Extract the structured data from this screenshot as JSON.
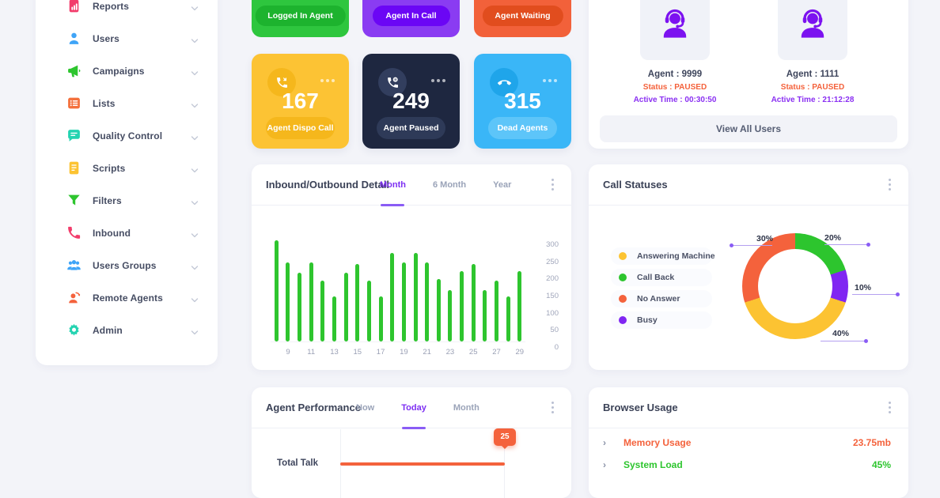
{
  "colors": {
    "green": "#2dc52e",
    "purple": "#8026f2",
    "orange": "#f4623c",
    "yellow": "#fcc332",
    "blue": "#3ab6f7",
    "dark_navy": "#1e2740",
    "pink": "#f23c6b",
    "teal": "#23d3b1",
    "blue_light": "#3fa4f7",
    "accent_purple": "#7d2ff2",
    "text_dark": "#3b4257",
    "text_gray": "#9aa3b8"
  },
  "sidebar": {
    "items": [
      {
        "icon": "reports-icon",
        "label": "Reports",
        "color": "#f23c6b"
      },
      {
        "icon": "users-icon",
        "label": "Users",
        "color": "#3fa4f7"
      },
      {
        "icon": "campaigns-icon",
        "label": "Campaigns",
        "color": "#2dc52e"
      },
      {
        "icon": "lists-icon",
        "label": "Lists",
        "color": "#f4703c"
      },
      {
        "icon": "quality-control-icon",
        "label": "Quality Control",
        "color": "#23d3b1"
      },
      {
        "icon": "scripts-icon",
        "label": "Scripts",
        "color": "#fcc332"
      },
      {
        "icon": "filters-icon",
        "label": "Filters",
        "color": "#2dc52e"
      },
      {
        "icon": "inbound-icon",
        "label": "Inbound",
        "color": "#f23c6b"
      },
      {
        "icon": "users-groups-icon",
        "label": "Users Groups",
        "color": "#3fa4f7"
      },
      {
        "icon": "remote-agents-icon",
        "label": "Remote Agents",
        "color": "#f4623c"
      },
      {
        "icon": "admin-icon",
        "label": "Admin",
        "color": "#23d3b1"
      }
    ]
  },
  "stat_cards_row1": [
    {
      "label": "Logged In Agent",
      "bg": "#2ec63e",
      "pill_bg": "#1db32e"
    },
    {
      "label": "Agent In Call",
      "bg": "#8a3cf2",
      "pill_bg": "#6b06f5"
    },
    {
      "label": "Agent Waiting",
      "bg": "#f2613a",
      "pill_bg": "#e14d1e"
    }
  ],
  "stat_cards_row2": [
    {
      "value": "167",
      "label": "Agent Dispo Call",
      "bg": "#fcc334",
      "badge_bg": "#f5b71c",
      "pill_bg": "#f5b71c",
      "icon": "phone-missed-icon"
    },
    {
      "value": "249",
      "label": "Agent Paused",
      "bg": "#1e2740",
      "badge_bg": "#323e5e",
      "pill_bg": "#2e3a58",
      "icon": "phone-paused-icon"
    },
    {
      "value": "315",
      "label": "Dead Agents",
      "bg": "#3ab6f7",
      "badge_bg": "#1fa5ea",
      "pill_bg": "#5dc5f9",
      "icon": "phone-dead-icon"
    }
  ],
  "agents_panel": {
    "agents": [
      {
        "name": "Agent : 9999",
        "status": "Status : PAUSED",
        "active": "Active Time : 00:30:50"
      },
      {
        "name": "Agent : 1111",
        "status": "Status : PAUSED",
        "active": "Active Time : 21:12:28"
      }
    ],
    "status_color": "#f4623c",
    "active_color": "#8a2ff2",
    "button_label": "View All Users"
  },
  "panels": {
    "inbound": {
      "title": "Inbound/Outbound Detail",
      "tabs": [
        "Month",
        "6 Month",
        "Year"
      ],
      "active_tab": "Month"
    },
    "call_statuses": {
      "title": "Call Statuses"
    },
    "performance": {
      "title": "Agent Performance",
      "tabs": [
        "Now",
        "Today",
        "Month"
      ],
      "active_tab": "Today"
    },
    "browser": {
      "title": "Browser Usage",
      "rows": [
        {
          "label": "Memory Usage",
          "value": "23.75mb",
          "color": "#f4623c"
        },
        {
          "label": "System Load",
          "value": "45%",
          "color": "#2dc52e"
        }
      ]
    }
  },
  "chart_data": [
    {
      "type": "bar",
      "title": "Inbound/Outbound Detail",
      "x": [
        8,
        9,
        10,
        11,
        12,
        13,
        14,
        15,
        16,
        17,
        18,
        19,
        20,
        21,
        22,
        23,
        24,
        25,
        26,
        27,
        28,
        29
      ],
      "values": [
        315,
        245,
        215,
        245,
        190,
        140,
        215,
        240,
        190,
        140,
        275,
        245,
        275,
        245,
        195,
        160,
        220,
        240,
        160,
        190,
        140,
        220
      ],
      "x_tick_labels": [
        "9",
        "11",
        "13",
        "15",
        "17",
        "19",
        "21",
        "23",
        "25",
        "27",
        "29"
      ],
      "y_ticks": [
        0,
        50,
        100,
        150,
        200,
        250,
        300
      ],
      "ylim": [
        0,
        320
      ],
      "y_axis_side": "right",
      "bar_color": "#2ec52e",
      "grid": false,
      "legend_position": "none"
    },
    {
      "type": "pie",
      "donut": true,
      "title": "Call Statuses",
      "labels": [
        "Answering Machine",
        "Call Back",
        "No Answer",
        "Busy"
      ],
      "values": [
        40,
        20,
        30,
        10
      ],
      "colors": [
        "#fcc332",
        "#2dc52e",
        "#f4623c",
        "#8026f2"
      ],
      "data_labels": [
        "40%",
        "20%",
        "30%",
        "10%"
      ],
      "legend_position": "left"
    },
    {
      "type": "bar",
      "orientation": "horizontal",
      "title": "Agent Performance",
      "categories": [
        "Total Talk"
      ],
      "values": [
        25
      ],
      "bar_color": "#f4623c",
      "tooltip_value": "25"
    },
    {
      "type": "table",
      "title": "Browser Usage",
      "rows": [
        [
          "Memory Usage",
          "23.75mb"
        ],
        [
          "System Load",
          "45%"
        ]
      ]
    }
  ]
}
